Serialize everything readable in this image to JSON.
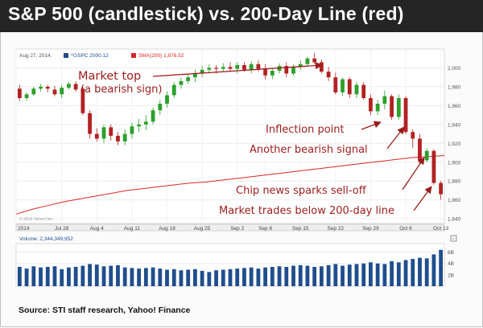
{
  "title": "S&P 500 (candlestick) vs. 200-Day Line (red)",
  "source": "Source: STI staff research, Yahoo! Finance",
  "copyright": "© 2014 Yahoo! Inc.",
  "colors": {
    "up": "#2ca02c",
    "down": "#b22222",
    "sma": "#d62728",
    "volume": "#1f4e8c",
    "annotation": "#9b1c1c"
  },
  "chart_data": {
    "type": "candlestick",
    "header": {
      "date": "Aug 27, 2014:",
      "gspc": "^GSPC 2000.12",
      "sma": "SMA(200) 1,876.52"
    },
    "ylim": [
      1835,
      2020
    ],
    "yticks": [
      "2,000",
      "1,980",
      "1,960",
      "1,940",
      "1,920",
      "1,900",
      "1,880",
      "1,860",
      "1,840"
    ],
    "ytick_values": [
      2000,
      1980,
      1960,
      1940,
      1920,
      1900,
      1880,
      1860,
      1840
    ],
    "xticks": [
      "2014",
      "Jul 28",
      "Aug 4",
      "Aug 11",
      "Aug 18",
      "Aug 25",
      "Sep 2",
      "Sep 8",
      "Sep 15",
      "Sep 22",
      "Sep 29",
      "Oct 6",
      "Oct 13"
    ],
    "xtick_index": [
      0,
      6,
      11,
      16,
      21,
      26,
      31,
      35,
      40,
      45,
      50,
      55,
      60
    ],
    "candles": [
      [
        1978,
        1982,
        1965,
        1968
      ],
      [
        1968,
        1974,
        1965,
        1972
      ],
      [
        1972,
        1980,
        1970,
        1978
      ],
      [
        1978,
        1983,
        1975,
        1980
      ],
      [
        1980,
        1982,
        1974,
        1978
      ],
      [
        1977,
        1981,
        1970,
        1972
      ],
      [
        1972,
        1982,
        1968,
        1979
      ],
      [
        1979,
        1985,
        1977,
        1983
      ],
      [
        1983,
        1986,
        1975,
        1977
      ],
      [
        1978,
        1980,
        1950,
        1952
      ],
      [
        1952,
        1955,
        1925,
        1930
      ],
      [
        1930,
        1936,
        1922,
        1925
      ],
      [
        1925,
        1940,
        1920,
        1937
      ],
      [
        1937,
        1940,
        1923,
        1928
      ],
      [
        1928,
        1932,
        1918,
        1922
      ],
      [
        1922,
        1935,
        1918,
        1930
      ],
      [
        1930,
        1942,
        1925,
        1938
      ],
      [
        1938,
        1946,
        1932,
        1940
      ],
      [
        1940,
        1950,
        1934,
        1943
      ],
      [
        1943,
        1958,
        1940,
        1955
      ],
      [
        1955,
        1966,
        1950,
        1962
      ],
      [
        1962,
        1975,
        1958,
        1971
      ],
      [
        1971,
        1985,
        1968,
        1982
      ],
      [
        1982,
        1990,
        1978,
        1986
      ],
      [
        1986,
        1994,
        1983,
        1990
      ],
      [
        1990,
        1998,
        1985,
        1994
      ],
      [
        1994,
        2002,
        1990,
        1998
      ],
      [
        1998,
        2004,
        1994,
        2000
      ],
      [
        2000,
        2003,
        1994,
        1999
      ],
      [
        1999,
        2005,
        1996,
        2001
      ],
      [
        2001,
        2006,
        1996,
        1999
      ],
      [
        1999,
        2006,
        1994,
        2003
      ],
      [
        2003,
        2006,
        1996,
        1998
      ],
      [
        1998,
        2007,
        1994,
        2004
      ],
      [
        2004,
        2008,
        1996,
        1999
      ],
      [
        1999,
        2004,
        1988,
        1992
      ],
      [
        1992,
        2000,
        1988,
        1997
      ],
      [
        1997,
        2005,
        1994,
        2002
      ],
      [
        2002,
        2006,
        1990,
        1994
      ],
      [
        1994,
        2004,
        1992,
        2001
      ],
      [
        2001,
        2008,
        1998,
        2004
      ],
      [
        2004,
        2012,
        2001,
        2010
      ],
      [
        2010,
        2016,
        2004,
        2006
      ],
      [
        2006,
        2009,
        1994,
        1996
      ],
      [
        1996,
        2001,
        1986,
        1990
      ],
      [
        1990,
        1995,
        1972,
        1974
      ],
      [
        1974,
        1990,
        1970,
        1988
      ],
      [
        1988,
        1990,
        1968,
        1972
      ],
      [
        1972,
        1985,
        1968,
        1982
      ],
      [
        1982,
        1985,
        1966,
        1968
      ],
      [
        1968,
        1972,
        1950,
        1954
      ],
      [
        1954,
        1966,
        1950,
        1962
      ],
      [
        1962,
        1976,
        1956,
        1970
      ],
      [
        1970,
        1972,
        1945,
        1948
      ],
      [
        1948,
        1972,
        1945,
        1968
      ],
      [
        1968,
        1970,
        1930,
        1932
      ],
      [
        1932,
        1935,
        1915,
        1925
      ],
      [
        1925,
        1930,
        1898,
        1902
      ],
      [
        1902,
        1915,
        1900,
        1912
      ],
      [
        1912,
        1914,
        1876,
        1878
      ],
      [
        1878,
        1880,
        1860,
        1866
      ]
    ],
    "sma200": [
      1845,
      1850,
      1854,
      1858,
      1861,
      1864,
      1867,
      1870,
      1872,
      1874,
      1876,
      1878,
      1879,
      1881,
      1883,
      1885,
      1887,
      1889,
      1891,
      1893,
      1895,
      1897,
      1899,
      1901,
      1903,
      1905,
      1906,
      1907
    ],
    "volume_label": "Volume: 2,344,349,952",
    "volume_ticks": [
      "6B",
      "4B",
      "2B"
    ],
    "volume_tick_values": [
      6,
      4,
      2
    ],
    "volume_ylim": [
      0,
      7.5
    ],
    "volume": [
      3.4,
      3.1,
      3.5,
      3.3,
      3.4,
      3.5,
      3.0,
      3.3,
      3.4,
      3.6,
      3.9,
      3.8,
      3.5,
      3.6,
      3.7,
      3.3,
      3.2,
      3.1,
      3.2,
      3.3,
      3.1,
      2.9,
      3.0,
      2.8,
      2.9,
      3.0,
      2.7,
      2.5,
      2.8,
      2.9,
      3.0,
      3.1,
      3.2,
      3.3,
      3.1,
      3.3,
      3.4,
      3.5,
      3.4,
      3.6,
      3.7,
      3.6,
      3.4,
      3.5,
      3.7,
      3.9,
      3.6,
      3.8,
      3.9,
      4.0,
      4.2,
      4.0,
      3.9,
      4.4,
      4.2,
      4.6,
      4.8,
      5.0,
      4.9,
      5.6,
      6.4
    ],
    "annotations": [
      {
        "text": "Market top",
        "subtext": "(a bearish sign)"
      },
      {
        "text": "Inflection point"
      },
      {
        "text": "Another bearish signal"
      },
      {
        "text": "Chip news sparks sell-off"
      },
      {
        "text": "Market trades below 200-day line"
      }
    ]
  }
}
